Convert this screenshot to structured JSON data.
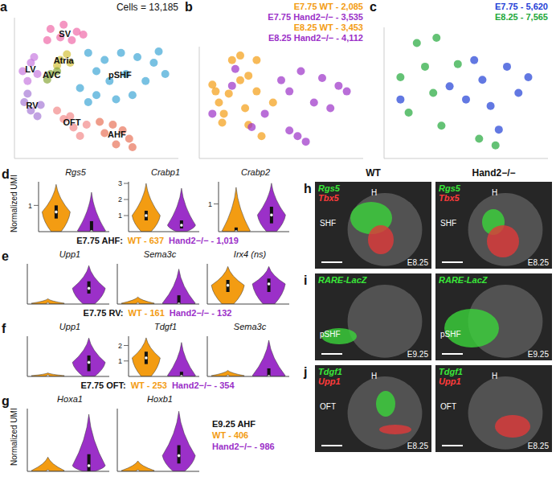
{
  "chart_data": [
    {
      "panel": "a",
      "type": "scatter",
      "title": "Cells = 13,185",
      "xlim": [
        0,
        100
      ],
      "ylim": [
        0,
        100
      ],
      "tick_labels": false,
      "marker": "circle",
      "series": [
        {
          "name": "SV",
          "color": "#f06aa8",
          "x": [
            22,
            30,
            38,
            28,
            35,
            42,
            20
          ],
          "y": [
            92,
            95,
            90,
            86,
            84,
            88,
            84
          ]
        },
        {
          "name": "LV",
          "color": "#c77be0",
          "x": [
            5,
            10,
            8,
            14,
            12
          ],
          "y": [
            62,
            68,
            55,
            60,
            72
          ]
        },
        {
          "name": "Atria",
          "color": "#d4c23a",
          "x": [
            28,
            32,
            26,
            34
          ],
          "y": [
            70,
            74,
            66,
            68
          ]
        },
        {
          "name": "AVC",
          "color": "#8aa83c",
          "x": [
            22,
            26,
            20
          ],
          "y": [
            60,
            62,
            56
          ]
        },
        {
          "name": "RV",
          "color": "#a77bd6",
          "x": [
            6,
            10,
            14,
            8,
            16
          ],
          "y": [
            40,
            34,
            30,
            46,
            38
          ]
        },
        {
          "name": "OFT",
          "color": "#f28a8a",
          "x": [
            30,
            36,
            40,
            34,
            44,
            26
          ],
          "y": [
            28,
            22,
            16,
            30,
            24,
            34
          ]
        },
        {
          "name": "AHF",
          "color": "#e8735a",
          "x": [
            55,
            62,
            70,
            60,
            66,
            72,
            52
          ],
          "y": [
            18,
            10,
            14,
            24,
            20,
            8,
            26
          ]
        },
        {
          "name": "pSHF",
          "color": "#3fa7d6",
          "x": [
            55,
            65,
            75,
            85,
            92,
            80,
            68,
            58,
            50,
            88,
            72,
            62,
            50,
            45,
            40,
            45
          ],
          "y": [
            70,
            75,
            72,
            68,
            60,
            55,
            60,
            55,
            62,
            76,
            45,
            42,
            45,
            75,
            50,
            40
          ]
        }
      ]
    },
    {
      "panel": "b",
      "type": "scatter",
      "xlim": [
        0,
        100
      ],
      "ylim": [
        0,
        100
      ],
      "tick_labels": false,
      "marker": "circle",
      "legend": "upper right",
      "series": [
        {
          "name": "E7.75 WT - 2,085",
          "color": "#f39c12",
          "x": [
            10,
            15,
            25,
            30,
            20,
            35,
            12,
            28
          ],
          "y": [
            60,
            40,
            70,
            30,
            88,
            60,
            50,
            45
          ]
        },
        {
          "name": "E7.75 Hand2−/− - 3,535",
          "color": "#9b30c8",
          "x": [
            55,
            70,
            85,
            40,
            60,
            20,
            8,
            75
          ],
          "y": [
            60,
            50,
            65,
            40,
            20,
            65,
            40,
            72
          ]
        },
        {
          "name": "E8.25 WT - 3,453",
          "color": "#f39c12",
          "x": [
            25,
            35,
            8,
            14,
            38,
            30,
            18,
            45
          ],
          "y": [
            92,
            88,
            66,
            32,
            20,
            74,
            58,
            50
          ]
        },
        {
          "name": "E8.25 Hand2−/− - 4,112",
          "color": "#9b30c8",
          "x": [
            65,
            55,
            90,
            50,
            32,
            22,
            80,
            62
          ],
          "y": [
            15,
            25,
            60,
            70,
            28,
            80,
            45,
            78
          ]
        }
      ]
    },
    {
      "panel": "c",
      "type": "scatter",
      "xlim": [
        0,
        100
      ],
      "ylim": [
        0,
        100
      ],
      "tick_labels": false,
      "marker": "circle",
      "legend": "upper right",
      "series": [
        {
          "name": "E7.75 - 5,620",
          "color": "#1f3fd6",
          "x": [
            60,
            75,
            88,
            50,
            65,
            40,
            55,
            82,
            70,
            10
          ],
          "y": [
            60,
            70,
            62,
            45,
            40,
            55,
            75,
            50,
            22,
            45
          ]
        },
        {
          "name": "E8.25 - 7,565",
          "color": "#22a83a",
          "x": [
            10,
            20,
            32,
            25,
            15,
            35,
            58,
            68,
            30,
            45
          ],
          "y": [
            62,
            88,
            92,
            70,
            35,
            25,
            15,
            10,
            50,
            72
          ]
        }
      ]
    }
  ],
  "violin_rows": [
    {
      "panel": "d",
      "y_label": "Normalized UMI",
      "subtitle": "E7.75 AHF:",
      "series": [
        {
          "name": "WT - 637",
          "color": "#f39c12"
        },
        {
          "name": "Hand2−/− - 1,019",
          "color": "#9b30c8"
        }
      ],
      "charts": [
        {
          "type": "violin",
          "title": "Rgs5",
          "ylim": [
            0,
            1.9
          ],
          "yticks": [
            0,
            1
          ],
          "values": [
            {
              "min": 0,
              "q1": 0.5,
              "median": 0.75,
              "q3": 1.0,
              "max": 1.8
            },
            {
              "min": 0,
              "q1": 0,
              "median": 0,
              "q3": 0.4,
              "max": 1.5
            }
          ]
        },
        {
          "type": "violin",
          "title": "Crabp1",
          "ylim": [
            0,
            3.1
          ],
          "yticks": [
            0,
            1,
            2,
            3
          ],
          "values": [
            {
              "min": 0,
              "q1": 0.7,
              "median": 1.0,
              "q3": 1.3,
              "max": 3.0
            },
            {
              "min": 0,
              "q1": 0.2,
              "median": 0.4,
              "q3": 0.7,
              "max": 2.7
            }
          ]
        },
        {
          "type": "violin",
          "title": "Crabp2",
          "ylim": [
            0,
            1.8
          ],
          "yticks": [
            0,
            1
          ],
          "values": [
            {
              "min": 0,
              "q1": 0,
              "median": 0,
              "q3": 0.15,
              "max": 1.6
            },
            {
              "min": 0,
              "q1": 0.3,
              "median": 0.6,
              "q3": 0.9,
              "max": 1.75
            }
          ]
        }
      ]
    },
    {
      "panel": "e",
      "subtitle": "E7.75 RV:",
      "series": [
        {
          "name": "WT - 161",
          "color": "#f39c12"
        },
        {
          "name": "Hand2−/− - 132",
          "color": "#9b30c8"
        }
      ],
      "charts": [
        {
          "type": "violin",
          "title": "Upp1",
          "ylim": [
            0,
            2.3
          ],
          "tick_labels": false,
          "values": [
            {
              "min": 0,
              "q1": 0,
              "median": 0,
              "q3": 0,
              "max": 0.3
            },
            {
              "min": 0,
              "q1": 0.6,
              "median": 0.9,
              "q3": 1.3,
              "max": 2.2
            }
          ]
        },
        {
          "type": "violin",
          "title": "Sema3c",
          "ylim": [
            0,
            2.3
          ],
          "tick_labels": false,
          "values": [
            {
              "min": 0,
              "q1": 0,
              "median": 0,
              "q3": 0,
              "max": 0.4
            },
            {
              "min": 0,
              "q1": 0,
              "median": 0,
              "q3": 0.5,
              "max": 2.0
            }
          ]
        },
        {
          "type": "violin",
          "title": "Irx4 (ns)",
          "ylim": [
            0,
            3
          ],
          "tick_labels": false,
          "values": [
            {
              "min": 0,
              "q1": 0.9,
              "median": 1.4,
              "q3": 1.8,
              "max": 2.8
            },
            {
              "min": 0,
              "q1": 0.9,
              "median": 1.5,
              "q3": 1.9,
              "max": 2.8
            }
          ]
        }
      ]
    },
    {
      "panel": "f",
      "subtitle": "E7.75 OFT:",
      "series": [
        {
          "name": "WT - 253",
          "color": "#f39c12"
        },
        {
          "name": "Hand2−/− - 354",
          "color": "#9b30c8"
        }
      ],
      "charts": [
        {
          "type": "violin",
          "title": "Upp1",
          "ylim": [
            0,
            2.3
          ],
          "tick_labels": false,
          "values": [
            {
              "min": 0,
              "q1": 0,
              "median": 0,
              "q3": 0,
              "max": 0.2
            },
            {
              "min": 0,
              "q1": 0.3,
              "median": 0.8,
              "q3": 1.2,
              "max": 2.2
            }
          ]
        },
        {
          "type": "violin",
          "title": "Tdgf1",
          "ylim": [
            0,
            2.6
          ],
          "yticks": [
            0,
            1,
            2
          ],
          "values": [
            {
              "min": 0,
              "q1": 0.8,
              "median": 1.2,
              "q3": 1.6,
              "max": 2.5
            },
            {
              "min": 0,
              "q1": 0,
              "median": 0,
              "q3": 0.3,
              "max": 2.2
            }
          ]
        },
        {
          "type": "violin",
          "title": "Sema3c",
          "ylim": [
            0,
            2
          ],
          "tick_labels": false,
          "values": [
            {
              "min": 0,
              "q1": 0,
              "median": 0,
              "q3": 0,
              "max": 0.3
            },
            {
              "min": 0,
              "q1": 0,
              "median": 0,
              "q3": 0.4,
              "max": 1.8
            }
          ]
        }
      ]
    },
    {
      "panel": "g",
      "y_label": "Normalized UMI",
      "subtitle": "E9.25 AHF",
      "series": [
        {
          "name": "WT - 406",
          "color": "#f39c12"
        },
        {
          "name": "Hand2−/− - 986",
          "color": "#9b30c8"
        }
      ],
      "charts": [
        {
          "type": "violin",
          "title": "Hoxa1",
          "ylim": [
            0,
            2.2
          ],
          "tick_labels": false,
          "values": [
            {
              "min": 0,
              "q1": 0,
              "median": 0,
              "q3": 0,
              "max": 0.5
            },
            {
              "min": 0,
              "q1": 0,
              "median": 0.2,
              "q3": 0.6,
              "max": 2.0
            }
          ]
        },
        {
          "type": "violin",
          "title": "Hoxb1",
          "ylim": [
            0,
            2.4
          ],
          "tick_labels": false,
          "values": [
            {
              "min": 0,
              "q1": 0,
              "median": 0,
              "q3": 0,
              "max": 0.4
            },
            {
              "min": 0,
              "q1": 0.3,
              "median": 0.6,
              "q3": 1.0,
              "max": 2.3
            }
          ]
        }
      ]
    }
  ],
  "image_columns": [
    "WT",
    "Hand2−/−"
  ],
  "image_panels": [
    {
      "panel": "h",
      "stains": [
        {
          "text": "Rgs5",
          "color": "#39e639"
        },
        {
          "text": "Tbx5",
          "color": "#ff3b3b"
        }
      ],
      "labels": [
        "H",
        "SHF"
      ],
      "stage": "E8.25"
    },
    {
      "panel": "i",
      "stains": [
        {
          "text": "RARE-LacZ",
          "color": "#39e639"
        }
      ],
      "labels": [
        "pSHF"
      ],
      "stage": "E9.25"
    },
    {
      "panel": "j",
      "stains": [
        {
          "text": "Tdgf1",
          "color": "#39e639"
        },
        {
          "text": "Upp1",
          "color": "#ff3b3b"
        }
      ],
      "labels": [
        "H",
        "OFT"
      ],
      "stage": "E8.25"
    }
  ]
}
